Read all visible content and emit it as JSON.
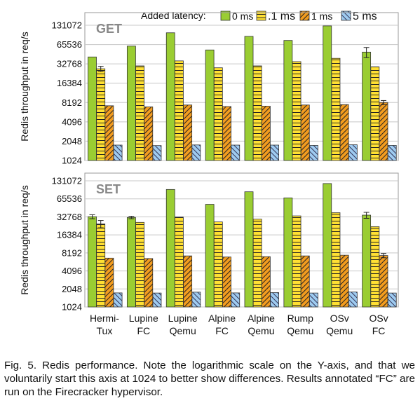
{
  "chart_data": [
    {
      "type": "bar",
      "title": "GET",
      "ylabel": "Redis throughput in req/s",
      "yscale": "log2",
      "ylim": [
        1024,
        131072
      ],
      "yticks": [
        "1024",
        "2048",
        "4096",
        "8192",
        "16384",
        "32768",
        "65536",
        "131072"
      ],
      "categories": [
        [
          "Hermi-",
          "Tux"
        ],
        [
          "Lupine",
          "FC"
        ],
        [
          "Lupine",
          "Qemu"
        ],
        [
          "Alpine",
          "FC"
        ],
        [
          "Alpine",
          "Qemu"
        ],
        [
          "Rump",
          "Qemu"
        ],
        [
          "OSv",
          "Qemu"
        ],
        [
          "OSv",
          "FC"
        ]
      ],
      "series": [
        {
          "name": "0 ms",
          "color": "#9acd32",
          "values": [
            42000,
            62000,
            100000,
            54000,
            88000,
            76000,
            128000,
            50000
          ],
          "errors": [
            null,
            null,
            null,
            null,
            null,
            null,
            null,
            9000
          ]
        },
        {
          "name": ".1 ms",
          "color": "#ffe033",
          "values": [
            27500,
            30500,
            36500,
            28500,
            30500,
            35500,
            40000,
            29500
          ],
          "errors": [
            2500,
            null,
            null,
            null,
            null,
            null,
            null,
            null
          ]
        },
        {
          "name": "1 ms",
          "color": "#f29c1f",
          "values": [
            7300,
            7000,
            7500,
            7100,
            7200,
            7500,
            7600,
            8200
          ],
          "errors": [
            null,
            null,
            null,
            null,
            null,
            null,
            null,
            600
          ]
        },
        {
          "name": "5 ms",
          "color": "#9ecbf0",
          "values": [
            1780,
            1750,
            1790,
            1780,
            1780,
            1760,
            1800,
            1760
          ],
          "errors": [
            null,
            null,
            null,
            null,
            null,
            null,
            null,
            null
          ]
        }
      ]
    },
    {
      "type": "bar",
      "title": "SET",
      "ylabel": "Redis throughput in req/s",
      "yscale": "log2",
      "ylim": [
        1024,
        131072
      ],
      "yticks": [
        "1024",
        "2048",
        "4096",
        "8192",
        "16384",
        "32768",
        "65536",
        "131072"
      ],
      "categories": [
        [
          "Hermi-",
          "Tux"
        ],
        [
          "Lupine",
          "FC"
        ],
        [
          "Lupine",
          "Qemu"
        ],
        [
          "Alpine",
          "FC"
        ],
        [
          "Alpine",
          "Qemu"
        ],
        [
          "Rump",
          "Qemu"
        ],
        [
          "OSv",
          "Qemu"
        ],
        [
          "OSv",
          "FC"
        ]
      ],
      "series": [
        {
          "name": "0 ms",
          "color": "#9acd32",
          "values": [
            33000,
            32000,
            94000,
            53000,
            86000,
            68000,
            118000,
            35000
          ],
          "errors": [
            2500,
            1500,
            null,
            null,
            null,
            null,
            null,
            4000
          ]
        },
        {
          "name": ".1 ms",
          "color": "#ffe033",
          "values": [
            25000,
            26500,
            32500,
            27000,
            30000,
            34000,
            38500,
            22500
          ],
          "errors": [
            3500,
            null,
            null,
            null,
            null,
            null,
            null,
            null
          ]
        },
        {
          "name": "1 ms",
          "color": "#f29c1f",
          "values": [
            6700,
            6600,
            7300,
            7000,
            7100,
            7300,
            7500,
            7400
          ],
          "errors": [
            null,
            null,
            null,
            null,
            null,
            null,
            null,
            600
          ]
        },
        {
          "name": "5 ms",
          "color": "#9ecbf0",
          "values": [
            1760,
            1750,
            1810,
            1760,
            1780,
            1750,
            1820,
            1750
          ],
          "errors": [
            null,
            null,
            null,
            null,
            null,
            null,
            null,
            null
          ]
        }
      ]
    }
  ],
  "legend": {
    "title": "Added latency:",
    "placement": "top-right"
  },
  "caption": "Fig. 5. Redis performance. Note the logarithmic scale on the Y-axis, and that we voluntarily start this axis at 1024 to better show differences. Results annotated “FC” are run on the Firecracker hypervisor."
}
